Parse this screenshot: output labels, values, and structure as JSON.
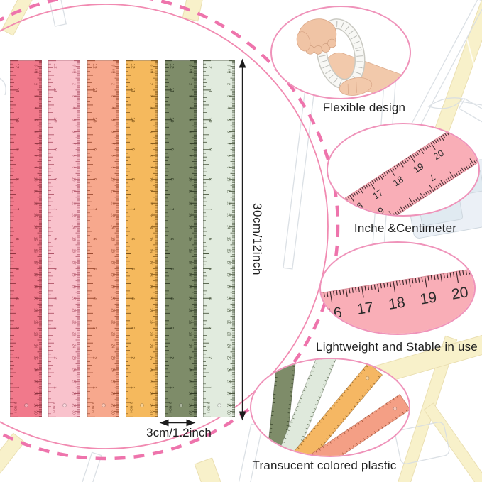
{
  "labels": {
    "flexible": "Flexible design",
    "inch_cm": "Inche &Centimeter",
    "lightweight": "Lightweight and Stable in use",
    "translucent": "Transucent colored plastic",
    "length": "30cm/12inch",
    "width": "3cm/1.2inch"
  },
  "colors": {
    "circle_solid": "#f18ab1",
    "circle_dashed": "#ee74ac",
    "ellipse_border": "#ef93ba",
    "closeup_body": "#f9aeb7",
    "closeup_edge": "#e2929e",
    "closeup_tick": "#3f2a2e",
    "closeup_number": "#2b2b2b",
    "arrow": "#1c1c1c",
    "text": "#1f1f1f"
  },
  "main_rulers": {
    "cm_max": 30,
    "inch_max": 12,
    "zero_inch_label": "0 INCH",
    "cm_unit_label": "CM",
    "items": [
      {
        "name": "watermelon-pink",
        "body": "#f1798b",
        "tick": "#8e3340"
      },
      {
        "name": "light-pink",
        "body": "#f9c2cc",
        "tick": "#b05468"
      },
      {
        "name": "salmon-peach",
        "body": "#f7a88d",
        "tick": "#9a4a30"
      },
      {
        "name": "amber-orange",
        "body": "#f5b95d",
        "tick": "#7e5418"
      },
      {
        "name": "olive-green",
        "body": "#7e8c69",
        "tick": "#2f3a24"
      },
      {
        "name": "pale-mint",
        "body": "#e1ebde",
        "tick": "#4c5941"
      }
    ]
  },
  "closeups": {
    "diagonal": {
      "cm_numbers": [
        16,
        17,
        18,
        19,
        20
      ],
      "inch_numbers": [
        6,
        7
      ]
    },
    "horizontal": {
      "cm_numbers": [
        16,
        17,
        18,
        19,
        20
      ]
    },
    "fanned": [
      {
        "name": "olive-green",
        "body": "#7e8c69",
        "tick": "#333f27"
      },
      {
        "name": "pale-mint",
        "body": "#dfe9dc",
        "tick": "#5a6850"
      },
      {
        "name": "amber-orange",
        "body": "#f5b763",
        "tick": "#8a5a1e"
      },
      {
        "name": "salmon-peach",
        "body": "#f49f85",
        "tick": "#9c4a30"
      }
    ]
  }
}
